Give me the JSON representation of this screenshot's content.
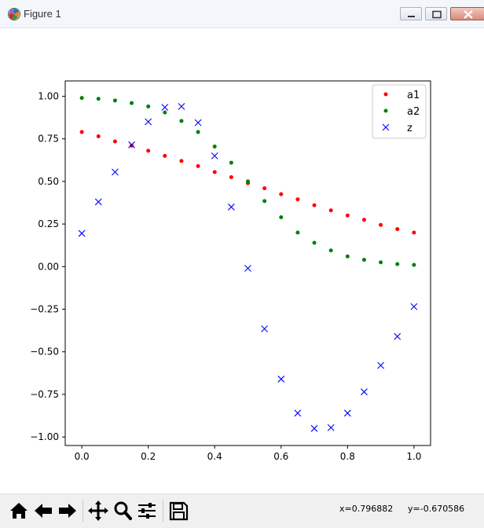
{
  "window": {
    "title": "Figure 1",
    "icon": "matplotlib-icon",
    "controls": [
      "minimize-icon",
      "maximize-icon",
      "close-icon"
    ]
  },
  "chart_data": {
    "type": "scatter",
    "title": "",
    "xlabel": "",
    "ylabel": "",
    "xlim": [
      -0.05,
      1.05
    ],
    "ylim": [
      -1.05,
      1.09
    ],
    "grid": false,
    "legend_position": "top-right",
    "x_ticks": [
      "0.0",
      "0.2",
      "0.4",
      "0.6",
      "0.8",
      "1.0"
    ],
    "y_ticks": [
      "1.00",
      "0.75",
      "0.50",
      "0.25",
      "0.00",
      "−0.25",
      "−0.50",
      "−0.75",
      "−1.00"
    ],
    "x": [
      0.0,
      0.05,
      0.1,
      0.15,
      0.2,
      0.25,
      0.3,
      0.35,
      0.4,
      0.45,
      0.5,
      0.55,
      0.6,
      0.65,
      0.7,
      0.75,
      0.8,
      0.85,
      0.9,
      0.95,
      1.0
    ],
    "series": [
      {
        "name": "a1",
        "color": "#ff0000",
        "marker": "dot",
        "values": [
          0.79,
          0.765,
          0.735,
          0.71,
          0.68,
          0.65,
          0.62,
          0.59,
          0.555,
          0.525,
          0.49,
          0.46,
          0.425,
          0.395,
          0.36,
          0.33,
          0.3,
          0.275,
          0.245,
          0.22,
          0.2
        ]
      },
      {
        "name": "a2",
        "color": "#008000",
        "marker": "dot",
        "values": [
          0.99,
          0.985,
          0.975,
          0.96,
          0.94,
          0.905,
          0.855,
          0.79,
          0.705,
          0.61,
          0.5,
          0.385,
          0.29,
          0.2,
          0.14,
          0.095,
          0.06,
          0.04,
          0.025,
          0.015,
          0.01
        ]
      },
      {
        "name": "z",
        "color": "#0000ff",
        "marker": "x",
        "values": [
          0.195,
          0.38,
          0.555,
          0.715,
          0.85,
          0.935,
          0.94,
          0.845,
          0.65,
          0.35,
          -0.01,
          -0.365,
          -0.66,
          -0.86,
          -0.95,
          -0.945,
          -0.86,
          -0.735,
          -0.58,
          -0.41,
          -0.235
        ]
      }
    ]
  },
  "toolbar": {
    "buttons": [
      "home-icon",
      "back-icon",
      "forward-icon",
      "pan-icon",
      "zoom-icon",
      "configure-subplots-icon",
      "save-icon"
    ],
    "x_readout": "x=0.796882",
    "y_readout": "y=-0.670586"
  }
}
